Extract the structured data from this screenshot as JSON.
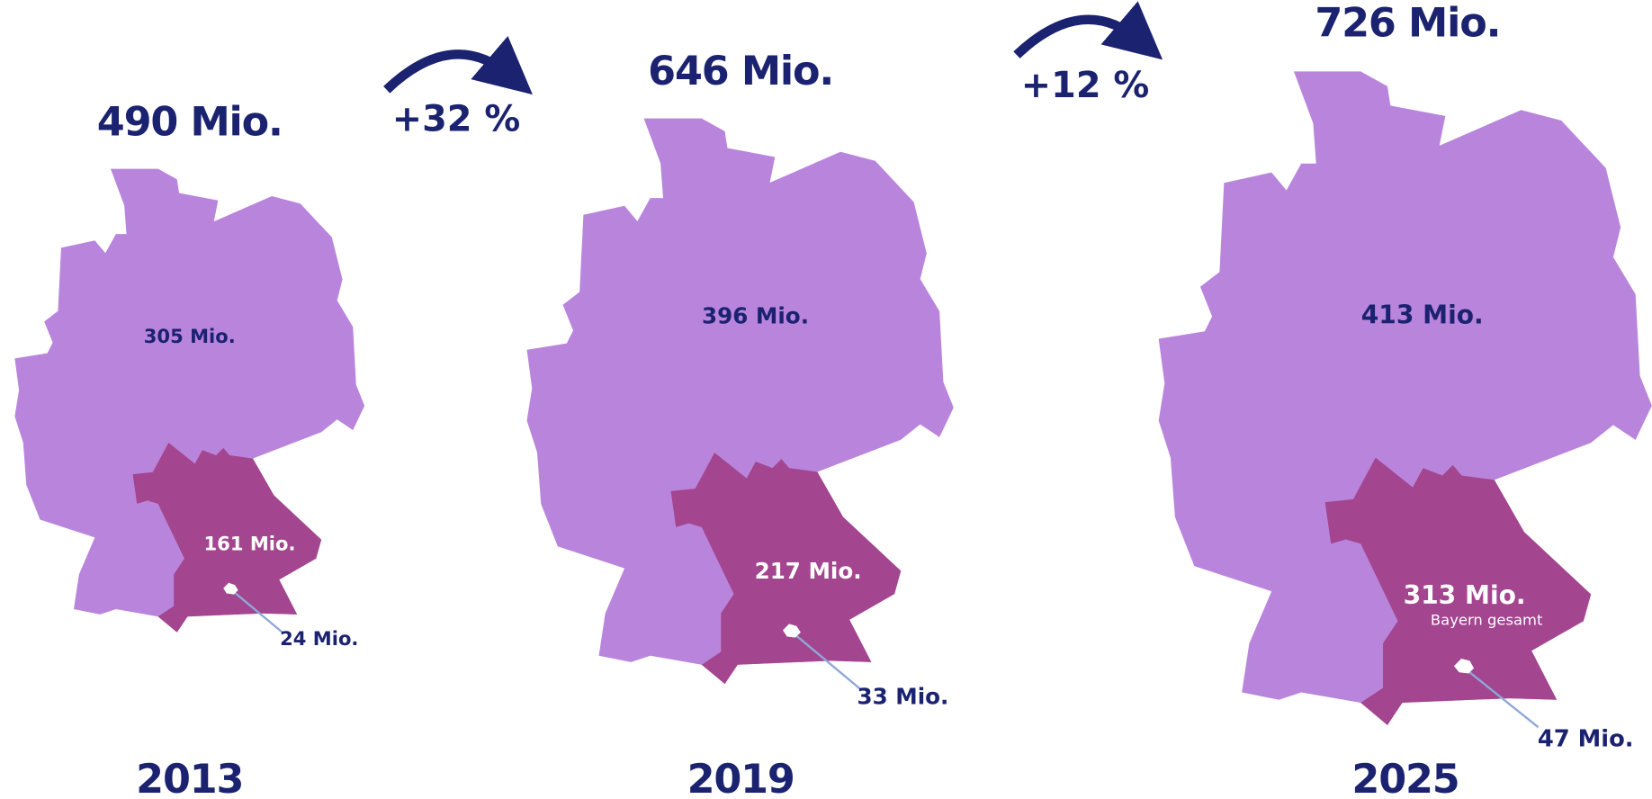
{
  "panels": [
    {
      "year": "2013",
      "total": "490 Mio.",
      "germany": "305 Mio.",
      "bavaria": "161 Mio.",
      "munich": "24 Mio."
    },
    {
      "year": "2019",
      "total": "646 Mio.",
      "germany": "396 Mio.",
      "bavaria": "217 Mio.",
      "munich": "33 Mio."
    },
    {
      "year": "2025",
      "total": "726 Mio.",
      "germany": "413 Mio.",
      "bavaria": "313 Mio.",
      "bavaria_note": "Bayern gesamt",
      "munich": "47 Mio."
    }
  ],
  "changes": [
    "+32 %",
    "+12 %"
  ]
}
